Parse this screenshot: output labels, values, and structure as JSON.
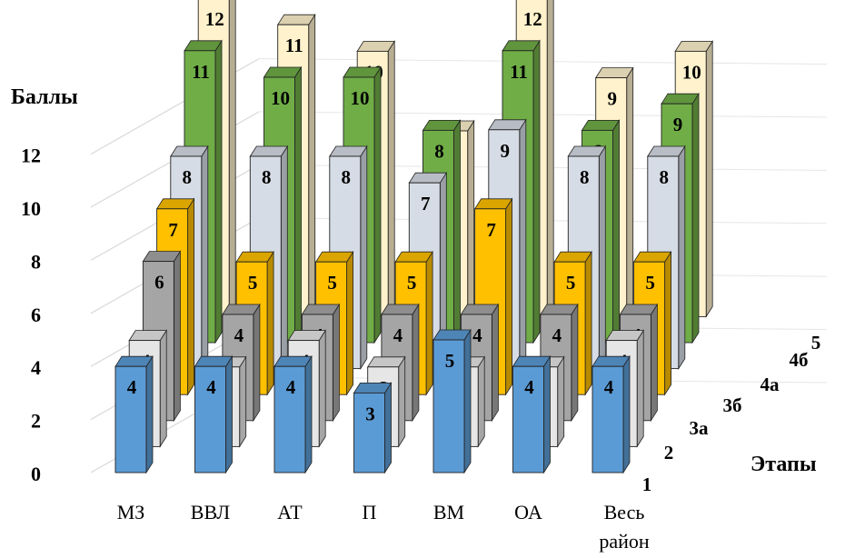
{
  "chart_data": {
    "type": "bar",
    "subtype": "3d-clustered-bar",
    "title": "",
    "ylabel": "Баллы",
    "zlabel": "Этапы",
    "xlabel": "",
    "ylim": [
      0,
      12
    ],
    "yticks": [
      "0",
      "2",
      "4",
      "6",
      "8",
      "10",
      "12"
    ],
    "grid": true,
    "legend": "none",
    "categories": [
      "МЗ",
      "ВВЛ",
      "АТ",
      "П",
      "ВМ",
      "ОА",
      "Весь район"
    ],
    "series": [
      {
        "name": "1",
        "color": "#5b9bd5",
        "values": [
          4,
          4,
          4,
          3,
          5,
          4,
          4
        ]
      },
      {
        "name": "2",
        "color": "#e7e6e6",
        "values": [
          4,
          3,
          4,
          3,
          3,
          3,
          4
        ]
      },
      {
        "name": "3а",
        "color": "#a5a5a5",
        "values": [
          6,
          4,
          4,
          4,
          4,
          4,
          4
        ]
      },
      {
        "name": "3б",
        "color": "#ffc000",
        "values": [
          7,
          5,
          5,
          5,
          7,
          5,
          5
        ]
      },
      {
        "name": "4а",
        "color": "#d6dce5",
        "values": [
          8,
          8,
          8,
          7,
          9,
          8,
          8
        ]
      },
      {
        "name": "4б",
        "color": "#70ad47",
        "values": [
          11,
          10,
          10,
          8,
          11,
          8,
          9
        ]
      },
      {
        "name": "5",
        "color": "#fff2cc",
        "values": [
          12,
          11,
          10,
          7,
          12,
          9,
          10
        ]
      }
    ]
  }
}
